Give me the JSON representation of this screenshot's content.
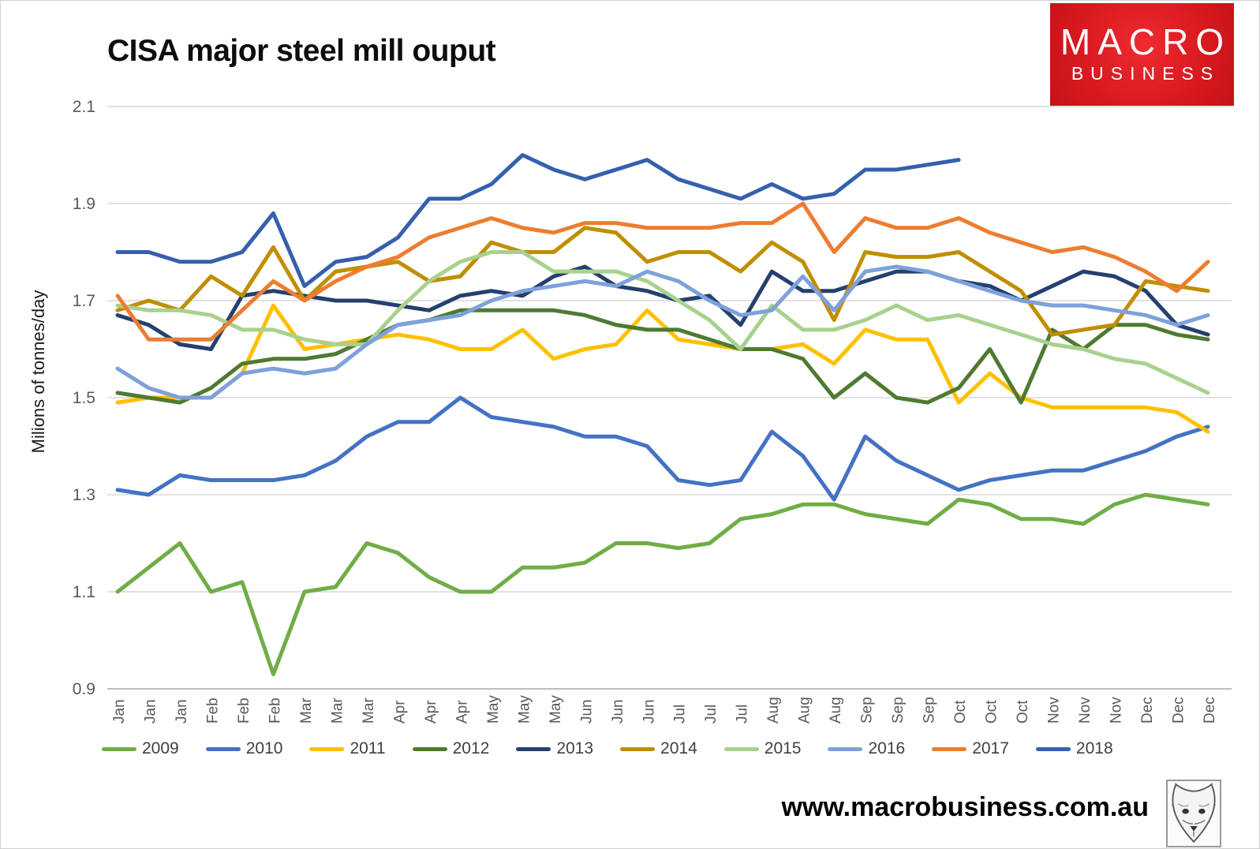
{
  "title": "CISA major steel mill ouput",
  "logo": {
    "line1": "MACRO",
    "line2": "BUSINESS",
    "bg_color": "#D91A20"
  },
  "footer": {
    "url": "www.macrobusiness.com.au"
  },
  "icons": {
    "fox_logo": "fox-head-sketch"
  },
  "chart_data": {
    "type": "line",
    "title": "CISA major steel mill ouput",
    "xlabel": "",
    "ylabel": "Milions of tonnes/day",
    "ylim": [
      0.9,
      2.1
    ],
    "ytick_values": [
      2.1,
      1.9,
      1.7,
      1.5,
      1.3,
      1.1,
      0.9
    ],
    "ytick_labels": [
      "2.1",
      "1.9",
      "1.7",
      "1.5",
      "1.3",
      "1.1",
      "0.9"
    ],
    "grid": true,
    "gridline_color": "#D9D9D9",
    "axis_line_color": "#BFBFBF",
    "tick_label_color": "#595959",
    "legend_position": "bottom",
    "categories": [
      "Jan",
      "Jan",
      "Jan",
      "Feb",
      "Feb",
      "Feb",
      "Mar",
      "Mar",
      "Mar",
      "Apr",
      "Apr",
      "Apr",
      "May",
      "May",
      "May",
      "Jun",
      "Jun",
      "Jun",
      "Jul",
      "Jul",
      "Jul",
      "Aug",
      "Aug",
      "Aug",
      "Sep",
      "Sep",
      "Sep",
      "Oct",
      "Oct",
      "Oct",
      "Nov",
      "Nov",
      "Nov",
      "Dec",
      "Dec",
      "Dec"
    ],
    "series": [
      {
        "name": "2009",
        "color": "#70AD47",
        "values": [
          1.1,
          1.15,
          1.2,
          1.1,
          1.12,
          0.93,
          1.1,
          1.11,
          1.2,
          1.18,
          1.13,
          1.1,
          1.1,
          1.15,
          1.15,
          1.16,
          1.2,
          1.2,
          1.19,
          1.2,
          1.25,
          1.26,
          1.28,
          1.28,
          1.26,
          1.25,
          1.24,
          1.29,
          1.28,
          1.25,
          1.25,
          1.24,
          1.28,
          1.3,
          1.29,
          1.28
        ]
      },
      {
        "name": "2010",
        "color": "#4472C4",
        "values": [
          1.31,
          1.3,
          1.34,
          1.33,
          1.33,
          1.33,
          1.34,
          1.37,
          1.42,
          1.45,
          1.45,
          1.5,
          1.46,
          1.45,
          1.44,
          1.42,
          1.42,
          1.4,
          1.33,
          1.32,
          1.33,
          1.43,
          1.38,
          1.29,
          1.42,
          1.37,
          1.34,
          1.31,
          1.33,
          1.34,
          1.35,
          1.35,
          1.37,
          1.39,
          1.42,
          1.44
        ]
      },
      {
        "name": "2011",
        "color": "#FFC000",
        "values": [
          1.49,
          1.5,
          1.5,
          1.5,
          1.55,
          1.69,
          1.6,
          1.61,
          1.62,
          1.63,
          1.62,
          1.6,
          1.6,
          1.64,
          1.58,
          1.6,
          1.61,
          1.68,
          1.62,
          1.61,
          1.6,
          1.6,
          1.61,
          1.57,
          1.64,
          1.62,
          1.62,
          1.49,
          1.55,
          1.5,
          1.48,
          1.48,
          1.48,
          1.48,
          1.47,
          1.43
        ]
      },
      {
        "name": "2012",
        "color": "#4E7A31",
        "values": [
          1.51,
          1.5,
          1.49,
          1.52,
          1.57,
          1.58,
          1.58,
          1.59,
          1.62,
          1.65,
          1.66,
          1.68,
          1.68,
          1.68,
          1.68,
          1.67,
          1.65,
          1.64,
          1.64,
          1.62,
          1.6,
          1.6,
          1.58,
          1.5,
          1.55,
          1.5,
          1.49,
          1.52,
          1.6,
          1.49,
          1.64,
          1.6,
          1.65,
          1.65,
          1.63,
          1.62
        ]
      },
      {
        "name": "2013",
        "color": "#24406F",
        "values": [
          1.67,
          1.65,
          1.61,
          1.6,
          1.71,
          1.72,
          1.71,
          1.7,
          1.7,
          1.69,
          1.68,
          1.71,
          1.72,
          1.71,
          1.75,
          1.77,
          1.73,
          1.72,
          1.7,
          1.71,
          1.65,
          1.76,
          1.72,
          1.72,
          1.74,
          1.76,
          1.76,
          1.74,
          1.73,
          1.7,
          1.73,
          1.76,
          1.75,
          1.72,
          1.65,
          1.63
        ]
      },
      {
        "name": "2014",
        "color": "#BF8F00",
        "values": [
          1.68,
          1.7,
          1.68,
          1.75,
          1.71,
          1.81,
          1.7,
          1.76,
          1.77,
          1.78,
          1.74,
          1.75,
          1.82,
          1.8,
          1.8,
          1.85,
          1.84,
          1.78,
          1.8,
          1.8,
          1.76,
          1.82,
          1.78,
          1.66,
          1.8,
          1.79,
          1.79,
          1.8,
          1.76,
          1.72,
          1.63,
          1.64,
          1.65,
          1.74,
          1.73,
          1.72
        ]
      },
      {
        "name": "2015",
        "color": "#A9D18E",
        "values": [
          1.69,
          1.68,
          1.68,
          1.67,
          1.64,
          1.64,
          1.62,
          1.61,
          1.61,
          1.68,
          1.74,
          1.78,
          1.8,
          1.8,
          1.76,
          1.76,
          1.76,
          1.74,
          1.7,
          1.66,
          1.6,
          1.69,
          1.64,
          1.64,
          1.66,
          1.69,
          1.66,
          1.67,
          1.65,
          1.63,
          1.61,
          1.6,
          1.58,
          1.57,
          1.54,
          1.51
        ]
      },
      {
        "name": "2016",
        "color": "#7EA1DB",
        "values": [
          1.56,
          1.52,
          1.5,
          1.5,
          1.55,
          1.56,
          1.55,
          1.56,
          1.61,
          1.65,
          1.66,
          1.67,
          1.7,
          1.72,
          1.73,
          1.74,
          1.73,
          1.76,
          1.74,
          1.7,
          1.67,
          1.68,
          1.75,
          1.68,
          1.76,
          1.77,
          1.76,
          1.74,
          1.72,
          1.7,
          1.69,
          1.69,
          1.68,
          1.67,
          1.65,
          1.67
        ]
      },
      {
        "name": "2017",
        "color": "#ED7D31",
        "values": [
          1.71,
          1.62,
          1.62,
          1.62,
          1.68,
          1.74,
          1.7,
          1.74,
          1.77,
          1.79,
          1.83,
          1.85,
          1.87,
          1.85,
          1.84,
          1.86,
          1.86,
          1.85,
          1.85,
          1.85,
          1.86,
          1.86,
          1.9,
          1.8,
          1.87,
          1.85,
          1.85,
          1.87,
          1.84,
          1.82,
          1.8,
          1.81,
          1.79,
          1.76,
          1.72,
          1.78
        ]
      },
      {
        "name": "2018",
        "color": "#3560AE",
        "values": [
          1.8,
          1.8,
          1.78,
          1.78,
          1.8,
          1.88,
          1.73,
          1.78,
          1.79,
          1.83,
          1.91,
          1.91,
          1.94,
          2.0,
          1.97,
          1.95,
          1.97,
          1.99,
          1.95,
          1.93,
          1.91,
          1.94,
          1.91,
          1.92,
          1.97,
          1.97,
          1.98,
          1.99
        ]
      }
    ]
  }
}
